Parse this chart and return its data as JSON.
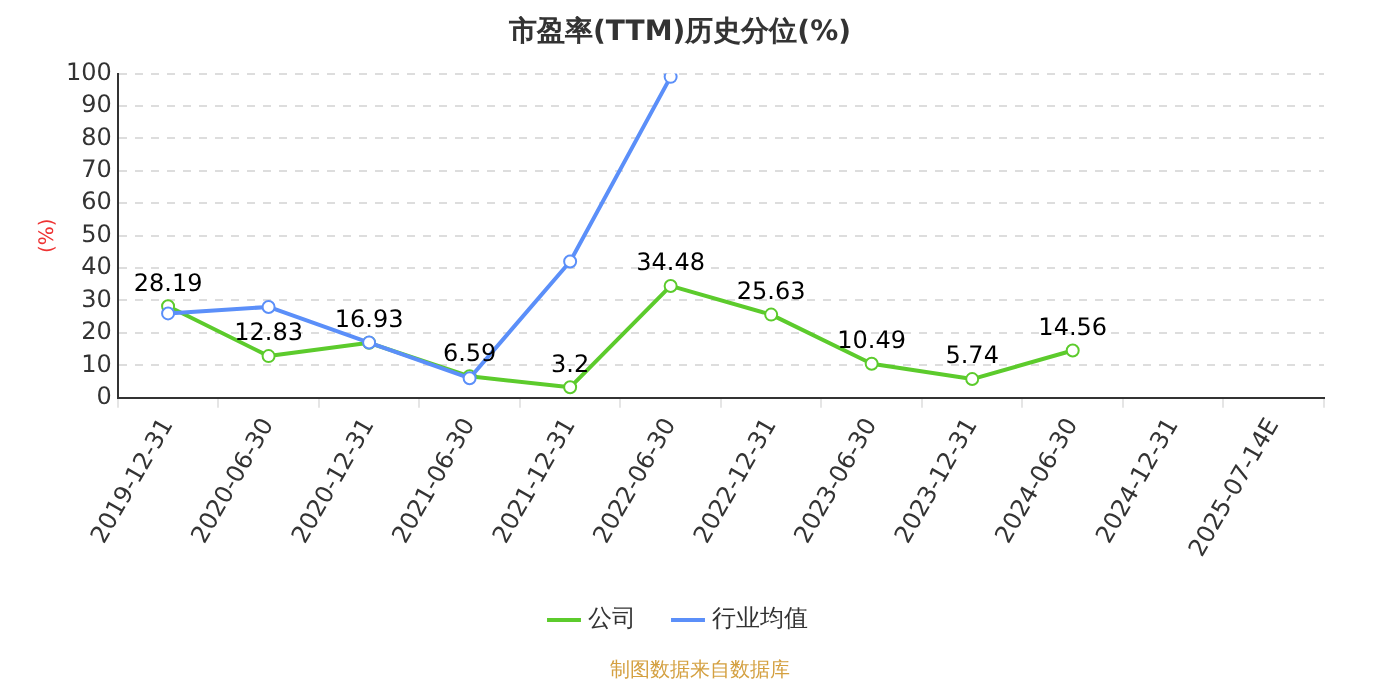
{
  "chart_data": {
    "type": "line",
    "title": "市盈率(TTM)历史分位(%)",
    "ylabel": "(%)",
    "categories": [
      "2019-12-31",
      "2020-06-30",
      "2020-12-31",
      "2021-06-30",
      "2021-12-31",
      "2022-06-30",
      "2022-12-31",
      "2023-06-30",
      "2023-12-31",
      "2024-06-30",
      "2024-12-31",
      "2025-07-14E"
    ],
    "series": [
      {
        "name": "公司",
        "color": "#5ccb2c",
        "values": [
          28.19,
          12.83,
          16.93,
          6.59,
          3.2,
          34.48,
          25.63,
          10.49,
          5.74,
          14.56,
          null,
          null
        ],
        "value_labels": [
          "28.19",
          "12.83",
          "16.93",
          "6.59",
          "3.2",
          "34.48",
          "25.63",
          "10.49",
          "5.74",
          "14.56",
          null,
          null
        ]
      },
      {
        "name": "行业均值",
        "color": "#5b8ff9",
        "values": [
          26,
          28,
          17,
          6,
          42,
          99,
          null,
          null,
          null,
          null,
          null,
          null
        ]
      }
    ],
    "ylim": [
      0,
      100
    ],
    "yticks": [
      0,
      10,
      20,
      30,
      40,
      50,
      60,
      70,
      80,
      90,
      100
    ],
    "grid": "y",
    "legend": "bottom",
    "marker": "circle",
    "line_style": "solid",
    "annotations": [
      "制图数据来自数据库"
    ]
  }
}
